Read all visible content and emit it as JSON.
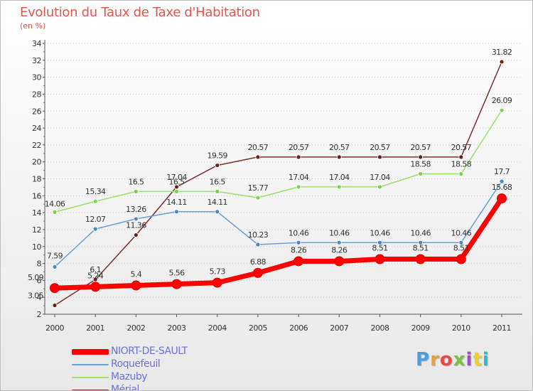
{
  "header": {
    "title": "Evolution du Taux de Taxe d'Habitation",
    "subtitle": "(en %)"
  },
  "logo": {
    "text": "Proxiti",
    "colors": [
      "#4a9fe0",
      "#e8a23a",
      "#e84a4a",
      "#7cc044",
      "#9e4fc4",
      "#e8d23a",
      "#3ab4c8"
    ]
  },
  "colors": {
    "NIORT-DE-SAULT": "#ff0000",
    "Roquefeuil": "#6a9fcf",
    "Mazuby": "#99e26b",
    "Mérial": "#7a2e2e"
  },
  "chart_data": {
    "type": "line",
    "title": "Evolution du Taux de Taxe d'Habitation",
    "ylabel": "(en %)",
    "xlabel": "",
    "x": [
      "2000",
      "2001",
      "2002",
      "2003",
      "2004",
      "2005",
      "2006",
      "2007",
      "2008",
      "2009",
      "2010",
      "2011"
    ],
    "ylim": [
      2,
      34
    ],
    "yticks": [
      2,
      4,
      6,
      8,
      10,
      12,
      14,
      16,
      18,
      20,
      22,
      24,
      26,
      28,
      30,
      32,
      34
    ],
    "grid": "horizontal dotted",
    "legend": "bottom-left",
    "series": [
      {
        "name": "NIORT-DE-SAULT",
        "values": [
          5.09,
          5.24,
          5.4,
          5.56,
          5.73,
          6.88,
          8.26,
          8.26,
          8.51,
          8.51,
          8.51,
          15.68
        ],
        "labels": [
          "5.09",
          "5.24",
          "5.4",
          "5.56",
          "5.73",
          "6.88",
          "8.26",
          "8.26",
          "8.51",
          "8.51",
          "8.51",
          "15.68"
        ]
      },
      {
        "name": "Roquefeuil",
        "values": [
          7.59,
          12.07,
          13.26,
          14.11,
          14.11,
          10.23,
          10.46,
          10.46,
          10.46,
          10.46,
          10.46,
          17.7
        ],
        "labels": [
          "7.59",
          "12.07",
          "13.26",
          "14.11",
          "14.11",
          "10.23",
          "10.46",
          "10.46",
          "10.46",
          "10.46",
          "10.46",
          "17.7"
        ]
      },
      {
        "name": "Mazuby",
        "values": [
          14.06,
          15.34,
          16.5,
          16.5,
          16.5,
          15.77,
          17.04,
          17.04,
          17.04,
          18.58,
          18.58,
          26.09
        ],
        "labels": [
          "14.06",
          "15.34",
          "16.5",
          "16.5",
          "16.5",
          "15.77",
          "17.04",
          "17.04",
          "17.04",
          "18.58",
          "18.58",
          "26.09"
        ]
      },
      {
        "name": "Mérial",
        "values": [
          3.05,
          6.1,
          11.36,
          17.04,
          19.59,
          20.57,
          20.57,
          20.57,
          20.57,
          20.57,
          20.57,
          31.82
        ],
        "labels": [
          "3.05",
          "6.1",
          "11.36",
          "17.04",
          "19.59",
          "20.57",
          "20.57",
          "20.57",
          "20.57",
          "20.57",
          "20.57",
          "31.82"
        ]
      }
    ]
  }
}
